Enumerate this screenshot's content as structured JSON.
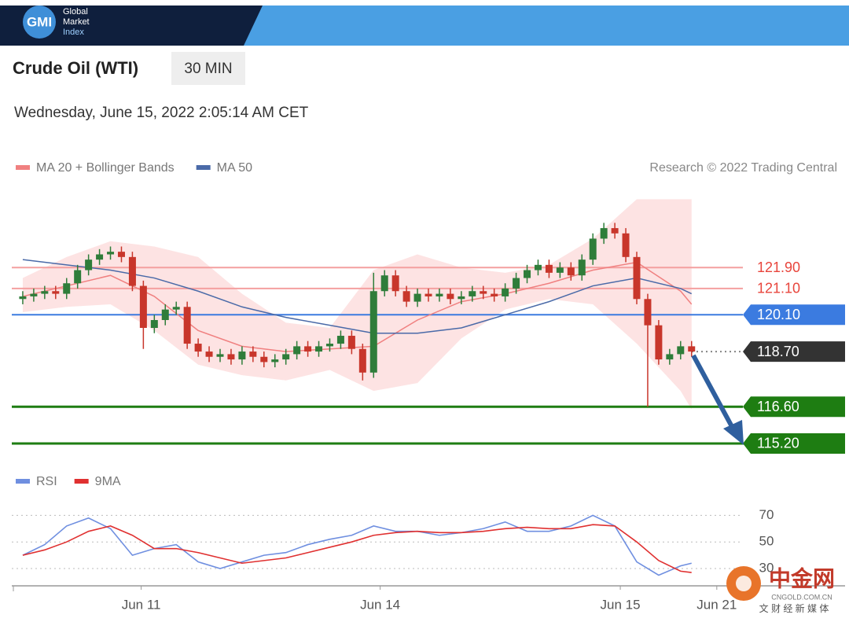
{
  "header": {
    "logo": "GMI",
    "brand": [
      "Global",
      "Market",
      "Index"
    ]
  },
  "watermark": {
    "name": "中金网",
    "site": "CNGOLD.COM.CN",
    "tagline": "文 财 经 新 媒 体"
  },
  "chart_data": [
    {
      "type": "candlestick",
      "title": "Crude Oil (WTI)",
      "timeframe": "30 MIN",
      "subtitle": "Wednesday, June 15, 2022 2:05:14 AM CET",
      "credit": "Research © 2022 Trading Central",
      "xlim": [
        -1,
        75
      ],
      "ylim": [
        114.57,
        124.9
      ],
      "up_color": "#2f7d3a",
      "down_color": "#c8362b",
      "open": [
        120.7,
        120.8,
        120.9,
        121.0,
        120.9,
        121.3,
        121.8,
        122.2,
        122.4,
        122.5,
        122.3,
        121.2,
        119.6,
        119.9,
        120.3,
        120.4,
        119.0,
        118.7,
        118.5,
        118.6,
        118.4,
        118.7,
        118.5,
        118.3,
        118.4,
        118.6,
        118.9,
        118.7,
        118.9,
        119.0,
        119.3,
        118.8,
        117.9,
        121.0,
        121.6,
        121.0,
        120.6,
        120.9,
        120.8,
        120.9,
        120.7,
        120.8,
        121.0,
        120.9,
        120.8,
        121.1,
        121.5,
        121.8,
        122.0,
        121.7,
        121.9,
        121.6,
        122.2,
        123.0,
        123.4,
        123.2,
        122.3,
        120.7,
        119.7,
        118.4,
        118.6,
        118.9
      ],
      "high": [
        121.0,
        121.1,
        121.2,
        121.2,
        121.5,
        122.0,
        122.4,
        122.6,
        122.7,
        122.7,
        122.5,
        121.4,
        120.1,
        120.5,
        120.6,
        120.6,
        119.2,
        118.9,
        118.8,
        118.8,
        118.9,
        118.9,
        118.7,
        118.6,
        118.8,
        119.1,
        119.1,
        119.1,
        119.2,
        119.5,
        119.5,
        119.0,
        121.7,
        121.8,
        121.8,
        121.2,
        121.1,
        121.1,
        121.1,
        121.1,
        121.0,
        121.2,
        121.2,
        121.1,
        121.3,
        121.7,
        122.0,
        122.2,
        122.2,
        122.1,
        122.1,
        122.4,
        123.2,
        123.6,
        123.6,
        123.4,
        122.5,
        120.9,
        119.9,
        118.8,
        119.1,
        119.1
      ],
      "low": [
        120.5,
        120.6,
        120.7,
        120.7,
        120.7,
        121.1,
        121.6,
        122.0,
        122.2,
        122.1,
        121.0,
        118.8,
        119.4,
        119.7,
        120.1,
        118.8,
        118.5,
        118.3,
        118.3,
        118.2,
        118.2,
        118.3,
        118.1,
        118.1,
        118.2,
        118.4,
        118.5,
        118.5,
        118.7,
        118.8,
        118.6,
        117.6,
        117.7,
        120.8,
        120.8,
        120.4,
        120.4,
        120.6,
        120.6,
        120.5,
        120.5,
        120.6,
        120.7,
        120.6,
        120.6,
        120.9,
        121.3,
        121.6,
        121.5,
        121.5,
        121.4,
        121.4,
        122.0,
        122.8,
        123.0,
        122.1,
        120.5,
        116.6,
        118.2,
        118.2,
        118.4,
        118.5
      ],
      "close": [
        120.8,
        120.9,
        121.0,
        120.9,
        121.3,
        121.8,
        122.2,
        122.4,
        122.5,
        122.3,
        121.2,
        119.6,
        119.9,
        120.3,
        120.4,
        119.0,
        118.7,
        118.5,
        118.6,
        118.4,
        118.7,
        118.5,
        118.3,
        118.4,
        118.6,
        118.9,
        118.7,
        118.9,
        119.0,
        119.3,
        118.8,
        117.9,
        121.0,
        121.6,
        121.0,
        120.6,
        120.9,
        120.8,
        120.9,
        120.7,
        120.8,
        121.0,
        120.9,
        120.8,
        121.1,
        121.5,
        121.8,
        122.0,
        121.7,
        121.9,
        121.6,
        122.2,
        123.0,
        123.4,
        123.2,
        122.3,
        120.7,
        119.7,
        118.4,
        118.6,
        118.9,
        118.7
      ],
      "overlays": [
        {
          "name": "MA 20 + Bollinger Bands",
          "color": "#f08080",
          "band_color": "#fcd9d9",
          "x": [
            0,
            4,
            8,
            12,
            16,
            20,
            24,
            28,
            32,
            36,
            40,
            44,
            48,
            52,
            56,
            60,
            61
          ],
          "values": [
            120.8,
            121.2,
            121.6,
            120.8,
            119.5,
            118.9,
            118.7,
            118.8,
            118.9,
            119.9,
            120.6,
            120.9,
            121.3,
            121.8,
            122.1,
            121.0,
            120.5
          ],
          "upper": [
            121.5,
            122.3,
            122.9,
            122.7,
            122.3,
            120.9,
            119.8,
            119.6,
            121.8,
            122.4,
            121.9,
            121.7,
            122.0,
            123.0,
            124.5,
            124.5,
            124.5
          ],
          "lower": [
            120.2,
            120.4,
            120.5,
            119.5,
            118.2,
            117.8,
            117.6,
            118.0,
            117.2,
            117.5,
            119.2,
            120.3,
            120.7,
            120.5,
            119.0,
            117.2,
            116.5
          ]
        },
        {
          "name": "MA 50",
          "color": "#4a6aa8",
          "x": [
            0,
            4,
            8,
            12,
            16,
            20,
            24,
            28,
            32,
            36,
            40,
            44,
            48,
            52,
            56,
            60,
            61
          ],
          "values": [
            122.2,
            122.0,
            121.8,
            121.5,
            121.0,
            120.4,
            120.0,
            119.7,
            119.4,
            119.4,
            119.6,
            120.1,
            120.6,
            121.2,
            121.5,
            121.1,
            120.9
          ]
        }
      ],
      "levels": [
        {
          "value": 121.9,
          "label": "121.90",
          "color": "#e8453c",
          "box": false,
          "line": "solid"
        },
        {
          "value": 121.1,
          "label": "121.10",
          "color": "#e8453c",
          "box": false,
          "line": "solid"
        },
        {
          "value": 120.1,
          "label": "120.10",
          "color": "#3b7be0",
          "box": true,
          "line": "solid"
        },
        {
          "value": 118.7,
          "label": "118.70",
          "color": "#333333",
          "box": true,
          "line": "dotted"
        },
        {
          "value": 116.6,
          "label": "116.60",
          "color": "#1e7d12",
          "box": true,
          "line": "solid"
        },
        {
          "value": 115.2,
          "label": "115.20",
          "color": "#1e7d12",
          "box": true,
          "line": "solid"
        }
      ]
    },
    {
      "type": "line",
      "xlim": [
        -1,
        75
      ],
      "ylim": [
        17,
        85
      ],
      "yticks": [
        70,
        50,
        30
      ],
      "grid": true,
      "xticks": [
        {
          "value": 10.8,
          "label": "Jun 11"
        },
        {
          "value": 32.6,
          "label": "Jun 14"
        },
        {
          "value": 54.5,
          "label": "Jun 15"
        },
        {
          "value": 63.3,
          "label": "Jun 21"
        }
      ],
      "x": [
        0,
        2,
        4,
        6,
        8,
        10,
        12,
        14,
        16,
        18,
        20,
        22,
        24,
        26,
        28,
        30,
        32,
        34,
        36,
        38,
        40,
        42,
        44,
        46,
        48,
        50,
        52,
        54,
        56,
        58,
        60,
        61
      ],
      "series": [
        {
          "name": "RSI",
          "color": "#6f8fe0",
          "values": [
            40,
            48,
            62,
            68,
            60,
            40,
            45,
            48,
            35,
            30,
            35,
            40,
            42,
            48,
            52,
            55,
            62,
            58,
            58,
            55,
            57,
            60,
            65,
            58,
            58,
            62,
            70,
            62,
            35,
            25,
            32,
            34
          ]
        },
        {
          "name": "9MA",
          "color": "#e03030",
          "values": [
            40,
            44,
            50,
            58,
            62,
            55,
            45,
            45,
            42,
            38,
            34,
            36,
            38,
            42,
            46,
            50,
            55,
            57,
            58,
            57,
            57,
            58,
            60,
            61,
            60,
            60,
            63,
            62,
            50,
            36,
            28,
            27
          ]
        }
      ]
    }
  ]
}
